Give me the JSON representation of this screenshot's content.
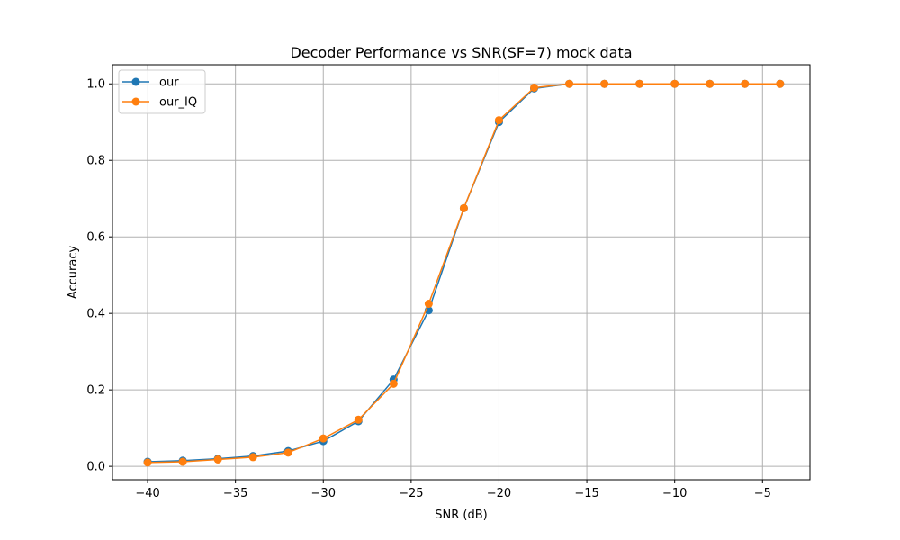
{
  "chart_data": {
    "type": "line",
    "title": "Decoder Performance vs SNR(SF=7) mock data",
    "xlabel": "SNR (dB)",
    "ylabel": "Accuracy",
    "x": [
      -40,
      -38,
      -36,
      -34,
      -32,
      -30,
      -28,
      -26,
      -24,
      -22,
      -20,
      -18,
      -16,
      -14,
      -12,
      -10,
      -8,
      -6,
      -4
    ],
    "xlim": [
      -42,
      -2.3
    ],
    "ylim": [
      -0.035,
      1.05
    ],
    "xticks": [
      -40,
      -35,
      -30,
      -25,
      -20,
      -15,
      -10,
      -5
    ],
    "xtick_labels": [
      "−40",
      "−35",
      "−30",
      "−25",
      "−20",
      "−15",
      "−10",
      "−5"
    ],
    "yticks": [
      0.0,
      0.2,
      0.4,
      0.6,
      0.8,
      1.0
    ],
    "ytick_labels": [
      "0.0",
      "0.2",
      "0.4",
      "0.6",
      "0.8",
      "1.0"
    ],
    "grid": true,
    "legend_position": "top-left",
    "series": [
      {
        "name": "our",
        "color": "#1f77b4",
        "values": [
          0.012,
          0.015,
          0.02,
          0.027,
          0.04,
          0.066,
          0.118,
          0.227,
          0.408,
          0.675,
          0.9,
          0.988,
          1.0,
          1.0,
          1.0,
          1.0,
          1.0,
          1.0,
          1.0
        ]
      },
      {
        "name": "our_IQ",
        "color": "#ff7f0e",
        "values": [
          0.01,
          0.012,
          0.018,
          0.024,
          0.036,
          0.073,
          0.122,
          0.216,
          0.425,
          0.675,
          0.905,
          0.99,
          1.0,
          1.0,
          1.0,
          1.0,
          1.0,
          1.0,
          1.0
        ]
      }
    ]
  }
}
